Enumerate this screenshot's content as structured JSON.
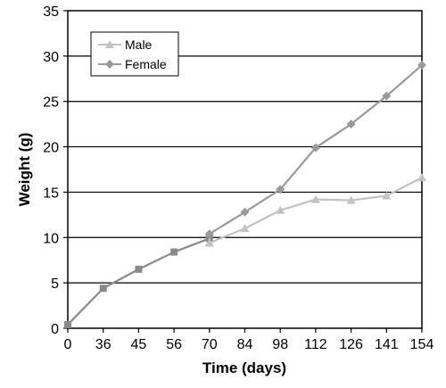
{
  "chart_data": {
    "type": "line",
    "xlabel": "Time (days)",
    "ylabel": "Weight (g)",
    "categories": [
      "0",
      "36",
      "45",
      "56",
      "70",
      "84",
      "98",
      "112",
      "126",
      "141",
      "154"
    ],
    "ylim": [
      0,
      35
    ],
    "yticks": [
      0,
      5,
      10,
      15,
      20,
      25,
      30,
      35
    ],
    "grid": "horizontal",
    "legend_position": "top-left",
    "shared_series": {
      "values": [
        0.4,
        4.4,
        6.5,
        8.4,
        9.9
      ],
      "color": "#8a8a8a",
      "marker": "square"
    },
    "series": [
      {
        "name": "Male",
        "color": "#c2c2c2",
        "marker": "triangle",
        "values": [
          null,
          null,
          null,
          null,
          9.4,
          11.0,
          13.0,
          14.2,
          14.1,
          14.6,
          16.6
        ]
      },
      {
        "name": "Female",
        "color": "#9a9a9a",
        "marker": "diamond",
        "values": [
          null,
          null,
          null,
          null,
          10.4,
          12.8,
          15.3,
          19.9,
          22.5,
          25.6,
          29.0
        ]
      }
    ]
  }
}
